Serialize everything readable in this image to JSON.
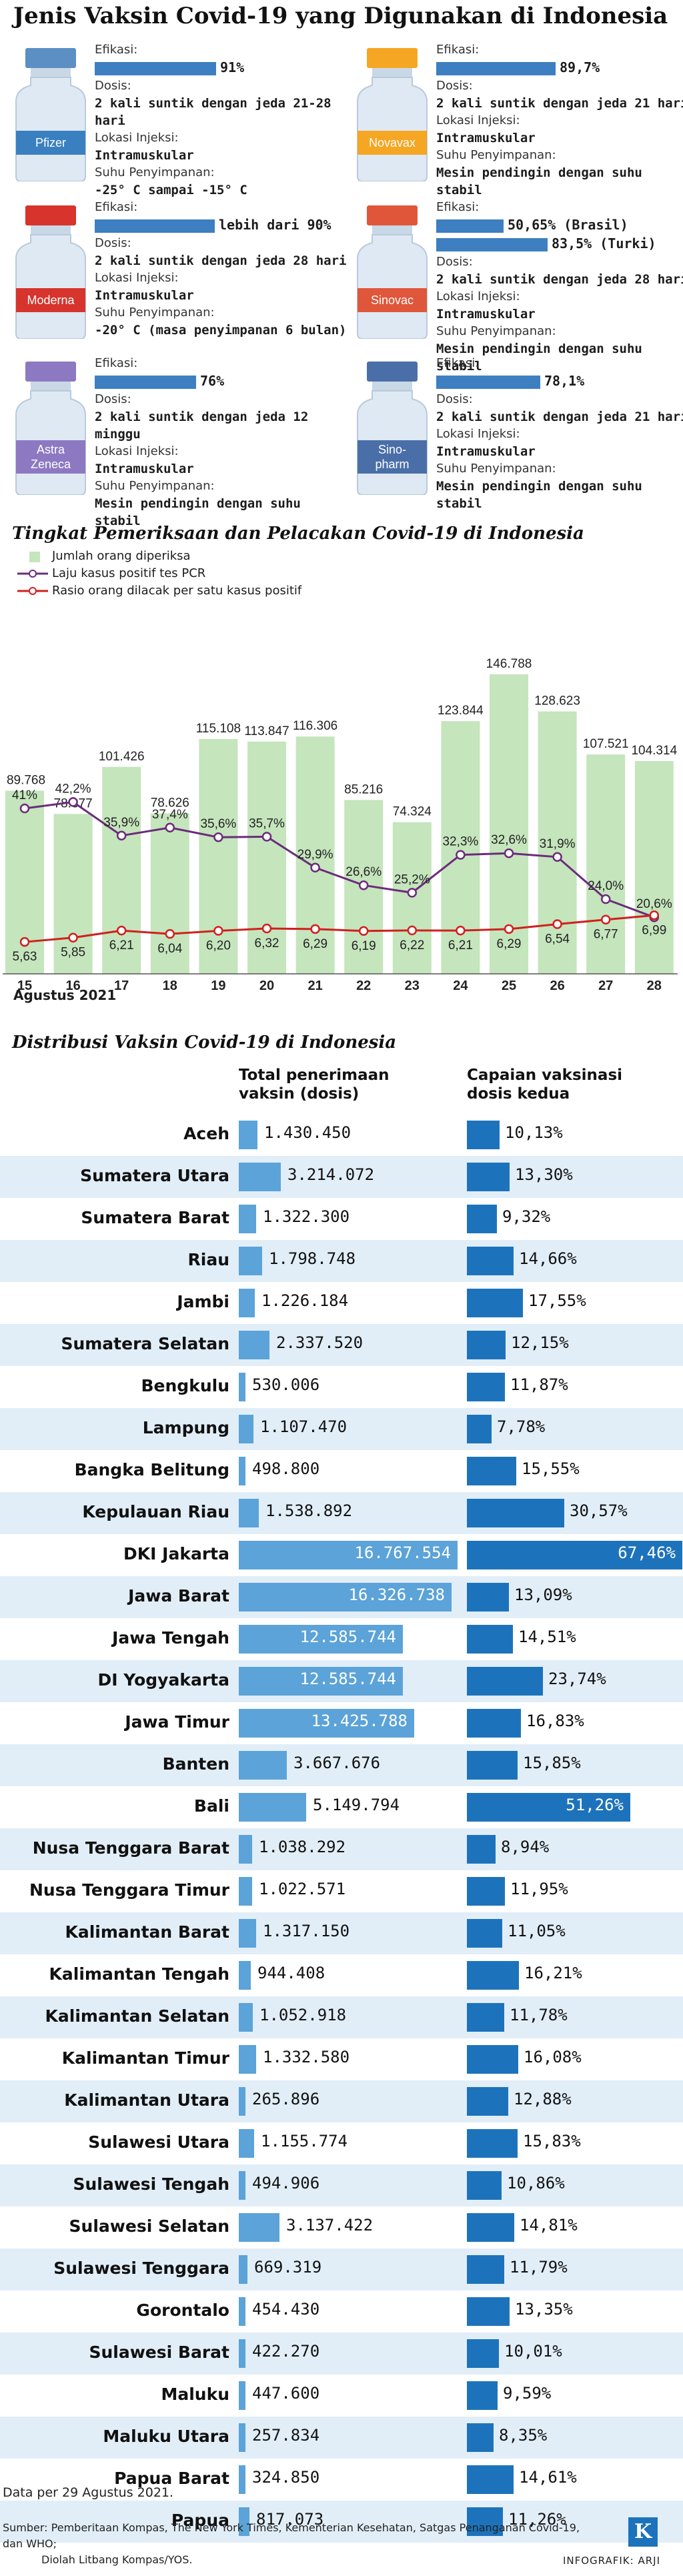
{
  "title": "Jenis Vaksin Covid-19 yang Digunakan di Indonesia",
  "labels": {
    "efficacy": "Efikasi:",
    "dose": "Dosis:",
    "site": "Lokasi Injeksi:",
    "storage": "Suhu Penyimpanan:"
  },
  "vaccines": [
    {
      "name": "Pfizer",
      "cap_color": "#5c8fc4",
      "label_color": "#3a7fc0",
      "efficacy": [
        {
          "value": 91,
          "text": "91%"
        }
      ],
      "dose": "2 kali suntik dengan jeda 21-28 hari",
      "site": "Intramuskular",
      "storage": "-25° C sampai -15° C"
    },
    {
      "name": "Novavax",
      "cap_color": "#f5a623",
      "label_color": "#f5a623",
      "efficacy": [
        {
          "value": 89.7,
          "text": "89,7%"
        }
      ],
      "dose": "2 kali suntik dengan jeda 21 hari",
      "site": "Intramuskular",
      "storage": "Mesin pendingin dengan suhu stabil"
    },
    {
      "name": "Moderna",
      "cap_color": "#d6342c",
      "label_color": "#d6342c",
      "efficacy": [
        {
          "value": 90,
          "text": "lebih dari 90%"
        }
      ],
      "dose": "2 kali suntik dengan jeda 28 hari",
      "site": "Intramuskular",
      "storage": "-20° C (masa penyimpanan 6 bulan)"
    },
    {
      "name": "Sinovac",
      "cap_color": "#e0563a",
      "label_color": "#e0563a",
      "efficacy": [
        {
          "value": 50.65,
          "text": "50,65% (Brasil)"
        },
        {
          "value": 83.5,
          "text": "83,5% (Turki)"
        }
      ],
      "dose": "2 kali suntik dengan jeda 28 hari",
      "site": "Intramuskular",
      "storage": "Mesin pendingin dengan suhu stabil"
    },
    {
      "name": "Astra Zeneca",
      "cap_color": "#8c79c2",
      "label_color": "#8c79c2",
      "efficacy": [
        {
          "value": 76,
          "text": "76%"
        }
      ],
      "dose": "2 kali suntik dengan jeda 12 minggu",
      "site": "Intramuskular",
      "storage": "Mesin pendingin dengan suhu stabil"
    },
    {
      "name": "Sino-pharm",
      "cap_color": "#4a6fa8",
      "label_color": "#4a6fa8",
      "efficacy": [
        {
          "value": 78.1,
          "text": "78,1%"
        }
      ],
      "dose": "2 kali suntik dengan jeda 21 hari",
      "site": "Intramuskular",
      "storage": "Mesin pendingin dengan suhu stabil"
    }
  ],
  "chart1": {
    "title": "Tingkat Pemeriksaan dan Pelacakan Covid-19 di Indonesia",
    "legend": [
      "Jumlah orang diperiksa",
      "Laju kasus positif tes PCR",
      "Rasio orang dilacak per satu kasus positif"
    ],
    "month_label": "Agustus 2021"
  },
  "chart_data": [
    {
      "type": "bar+line",
      "title": "Tingkat Pemeriksaan dan Pelacakan Covid-19 di Indonesia",
      "categories": [
        "15",
        "16",
        "17",
        "18",
        "19",
        "20",
        "21",
        "22",
        "23",
        "24",
        "25",
        "26",
        "27",
        "28"
      ],
      "xlabel": "Agustus 2021",
      "series": [
        {
          "name": "Jumlah orang diperiksa",
          "kind": "bar",
          "color": "#c5e5bd",
          "values": [
            89768,
            78377,
            101426,
            78626,
            115108,
            113847,
            116306,
            85216,
            74324,
            123844,
            146788,
            128623,
            107521,
            104314
          ],
          "labels": [
            "89.768",
            "78.377",
            "101.426",
            "78.626",
            "115.108",
            "113.847",
            "116.306",
            "85.216",
            "74.324",
            "123.844",
            "146.788",
            "128.623",
            "107.521",
            "104.314"
          ]
        },
        {
          "name": "Laju kasus positif tes PCR",
          "kind": "line",
          "color": "#6b2c7a",
          "values": [
            41,
            42.2,
            35.9,
            37.4,
            35.6,
            35.7,
            29.9,
            26.6,
            25.2,
            32.3,
            32.6,
            31.9,
            24.0,
            20.6
          ],
          "labels": [
            "41%",
            "42,2%",
            "35,9%",
            "37,4%",
            "35,6%",
            "35,7%",
            "29,9%",
            "26,6%",
            "25,2%",
            "32,3%",
            "32,6%",
            "31,9%",
            "24,0%",
            "20,6%"
          ]
        },
        {
          "name": "Rasio orang dilacak per satu kasus positif",
          "kind": "line",
          "color": "#d0201e",
          "values": [
            5.63,
            5.85,
            6.21,
            6.04,
            6.2,
            6.32,
            6.29,
            6.19,
            6.22,
            6.21,
            6.29,
            6.54,
            6.77,
            6.99
          ],
          "labels": [
            "5,63",
            "5,85",
            "6,21",
            "6,04",
            "6,20",
            "6,32",
            "6,29",
            "6,19",
            "6,22",
            "6,21",
            "6,29",
            "6,54",
            "6,77",
            "6,99"
          ]
        }
      ]
    },
    {
      "type": "table",
      "title": "Distribusi Vaksin Covid-19 di Indonesia",
      "columns": [
        "Total penerimaan vaksin (dosis)",
        "Capaian vaksinasi dosis kedua"
      ],
      "rows": [
        {
          "province": "Aceh",
          "total": 1430450,
          "total_text": "1.430.450",
          "second": 10.13,
          "second_text": "10,13%"
        },
        {
          "province": "Sumatera Utara",
          "total": 3214072,
          "total_text": "3.214.072",
          "second": 13.3,
          "second_text": "13,30%"
        },
        {
          "province": "Sumatera Barat",
          "total": 1322300,
          "total_text": "1.322.300",
          "second": 9.32,
          "second_text": "9,32%"
        },
        {
          "province": "Riau",
          "total": 1798748,
          "total_text": "1.798.748",
          "second": 14.66,
          "second_text": "14,66%"
        },
        {
          "province": "Jambi",
          "total": 1226184,
          "total_text": "1.226.184",
          "second": 17.55,
          "second_text": "17,55%"
        },
        {
          "province": "Sumatera Selatan",
          "total": 2337520,
          "total_text": "2.337.520",
          "second": 12.15,
          "second_text": "12,15%"
        },
        {
          "province": "Bengkulu",
          "total": 530006,
          "total_text": "530.006",
          "second": 11.87,
          "second_text": "11,87%"
        },
        {
          "province": "Lampung",
          "total": 1107470,
          "total_text": "1.107.470",
          "second": 7.78,
          "second_text": "7,78%"
        },
        {
          "province": "Bangka Belitung",
          "total": 498800,
          "total_text": "498.800",
          "second": 15.55,
          "second_text": "15,55%"
        },
        {
          "province": "Kepulauan Riau",
          "total": 1538892,
          "total_text": "1.538.892",
          "second": 30.57,
          "second_text": "30,57%"
        },
        {
          "province": "DKI Jakarta",
          "total": 16767554,
          "total_text": "16.767.554",
          "second": 67.46,
          "second_text": "67,46%"
        },
        {
          "province": "Jawa Barat",
          "total": 16326738,
          "total_text": "16.326.738",
          "second": 13.09,
          "second_text": "13,09%"
        },
        {
          "province": "Jawa Tengah",
          "total": 12585744,
          "total_text": "12.585.744",
          "second": 14.51,
          "second_text": "14,51%"
        },
        {
          "province": "DI Yogyakarta",
          "total": 12585744,
          "total_text": "12.585.744",
          "second": 23.74,
          "second_text": "23,74%"
        },
        {
          "province": "Jawa Timur",
          "total": 13425788,
          "total_text": "13.425.788",
          "second": 16.83,
          "second_text": "16,83%"
        },
        {
          "province": "Banten",
          "total": 3667676,
          "total_text": "3.667.676",
          "second": 15.85,
          "second_text": "15,85%"
        },
        {
          "province": "Bali",
          "total": 5149794,
          "total_text": "5.149.794",
          "second": 51.26,
          "second_text": "51,26%"
        },
        {
          "province": "Nusa Tenggara Barat",
          "total": 1038292,
          "total_text": "1.038.292",
          "second": 8.94,
          "second_text": "8,94%"
        },
        {
          "province": "Nusa Tenggara Timur",
          "total": 1022571,
          "total_text": "1.022.571",
          "second": 11.95,
          "second_text": "11,95%"
        },
        {
          "province": "Kalimantan Barat",
          "total": 1317150,
          "total_text": "1.317.150",
          "second": 11.05,
          "second_text": "11,05%"
        },
        {
          "province": "Kalimantan Tengah",
          "total": 944408,
          "total_text": "944.408",
          "second": 16.21,
          "second_text": "16,21%"
        },
        {
          "province": "Kalimantan Selatan",
          "total": 1052918,
          "total_text": "1.052.918",
          "second": 11.78,
          "second_text": "11,78%"
        },
        {
          "province": "Kalimantan Timur",
          "total": 1332580,
          "total_text": "1.332.580",
          "second": 16.08,
          "second_text": "16,08%"
        },
        {
          "province": "Kalimantan Utara",
          "total": 265896,
          "total_text": "265.896",
          "second": 12.88,
          "second_text": "12,88%"
        },
        {
          "province": "Sulawesi Utara",
          "total": 1155774,
          "total_text": "1.155.774",
          "second": 15.83,
          "second_text": "15,83%"
        },
        {
          "province": "Sulawesi Tengah",
          "total": 494906,
          "total_text": "494.906",
          "second": 10.86,
          "second_text": "10,86%"
        },
        {
          "province": "Sulawesi Selatan",
          "total": 3137422,
          "total_text": "3.137.422",
          "second": 14.81,
          "second_text": "14,81%"
        },
        {
          "province": "Sulawesi Tenggara",
          "total": 669319,
          "total_text": "669.319",
          "second": 11.79,
          "second_text": "11,79%"
        },
        {
          "province": "Gorontalo",
          "total": 454430,
          "total_text": "454.430",
          "second": 13.35,
          "second_text": "13,35%"
        },
        {
          "province": "Sulawesi Barat",
          "total": 422270,
          "total_text": "422.270",
          "second": 10.01,
          "second_text": "10,01%"
        },
        {
          "province": "Maluku",
          "total": 447600,
          "total_text": "447.600",
          "second": 9.59,
          "second_text": "9,59%"
        },
        {
          "province": "Maluku Utara",
          "total": 257834,
          "total_text": "257.834",
          "second": 8.35,
          "second_text": "8,35%"
        },
        {
          "province": "Papua Barat",
          "total": 324850,
          "total_text": "324.850",
          "second": 14.61,
          "second_text": "14,61%"
        },
        {
          "province": "Papua",
          "total": 817073,
          "total_text": "817.073",
          "second": 11.26,
          "second_text": "11,26%"
        }
      ]
    }
  ],
  "distribution": {
    "title": "Distribusi Vaksin Covid-19 di Indonesia",
    "col1_line1": "Total penerimaan",
    "col1_line2": "vaksin (dosis)",
    "col2_line1": "Capaian vaksinasi",
    "col2_line2": "dosis kedua"
  },
  "footer": {
    "note": "Data per 29 Agustus 2021.",
    "source_line1": "Sumber: Pemberitaan Kompas, The New York Times, Kementerian Kesehatan, Satgas Penanganan Covid-19, dan WHO;",
    "source_line2": "Diolah Litbang Kompas/YOS.",
    "credit": "INFOGRAFIK: ARJI",
    "logo": "K"
  },
  "colors": {
    "bar_blue": "#3d7fc1",
    "total_bar": "#5ba3d8",
    "second_bar": "#1d73bb",
    "row_alt": "#e1eef8"
  }
}
